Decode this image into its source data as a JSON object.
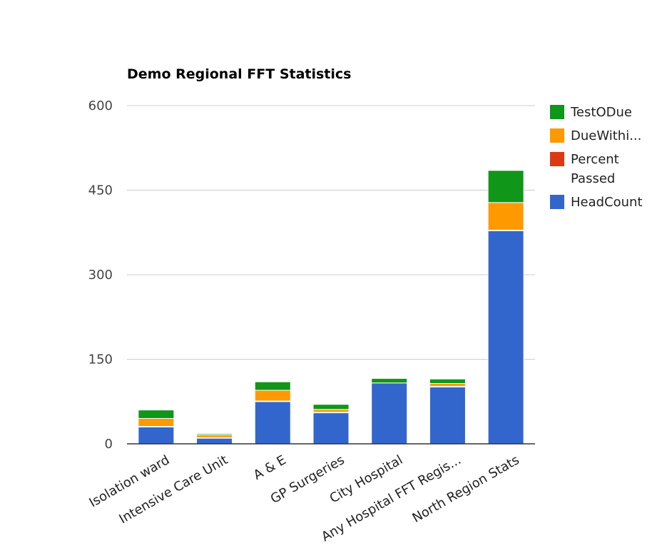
{
  "chart_data": {
    "type": "bar",
    "stacked": true,
    "title": "Demo Regional FFT Statistics",
    "xlabel": "",
    "ylabel": "",
    "ylim": [
      0,
      600
    ],
    "yticks": [
      0,
      150,
      300,
      450,
      600
    ],
    "grid": true,
    "legend_position": "right",
    "categories": [
      "Isolation ward",
      "Intensive Care Unit",
      "A & E",
      "GP Surgeries",
      "City Hospital",
      "Any Hospital FFT Regis...",
      "North Region Stats"
    ],
    "series": [
      {
        "name": "HeadCount",
        "color": "#3366cc",
        "values": [
          30,
          10,
          75,
          55,
          108,
          101,
          378
        ]
      },
      {
        "name": "Percent Passed",
        "color": "#dc3912",
        "values": [
          1,
          1,
          1,
          1,
          0,
          1,
          1
        ]
      },
      {
        "name": "DueWithi...",
        "color": "#ff9900",
        "values": [
          14,
          5,
          19,
          5,
          0,
          5,
          49
        ]
      },
      {
        "name": "TestODue",
        "color": "#109618",
        "values": [
          15,
          2,
          15,
          9,
          8,
          8,
          57
        ]
      }
    ],
    "legend": [
      {
        "label": [
          "TestODue"
        ],
        "color": "#109618"
      },
      {
        "label": [
          "DueWithi..."
        ],
        "color": "#ff9900"
      },
      {
        "label": [
          "Percent",
          "Passed"
        ],
        "color": "#dc3912"
      },
      {
        "label": [
          "HeadCount"
        ],
        "color": "#3366cc"
      }
    ]
  }
}
